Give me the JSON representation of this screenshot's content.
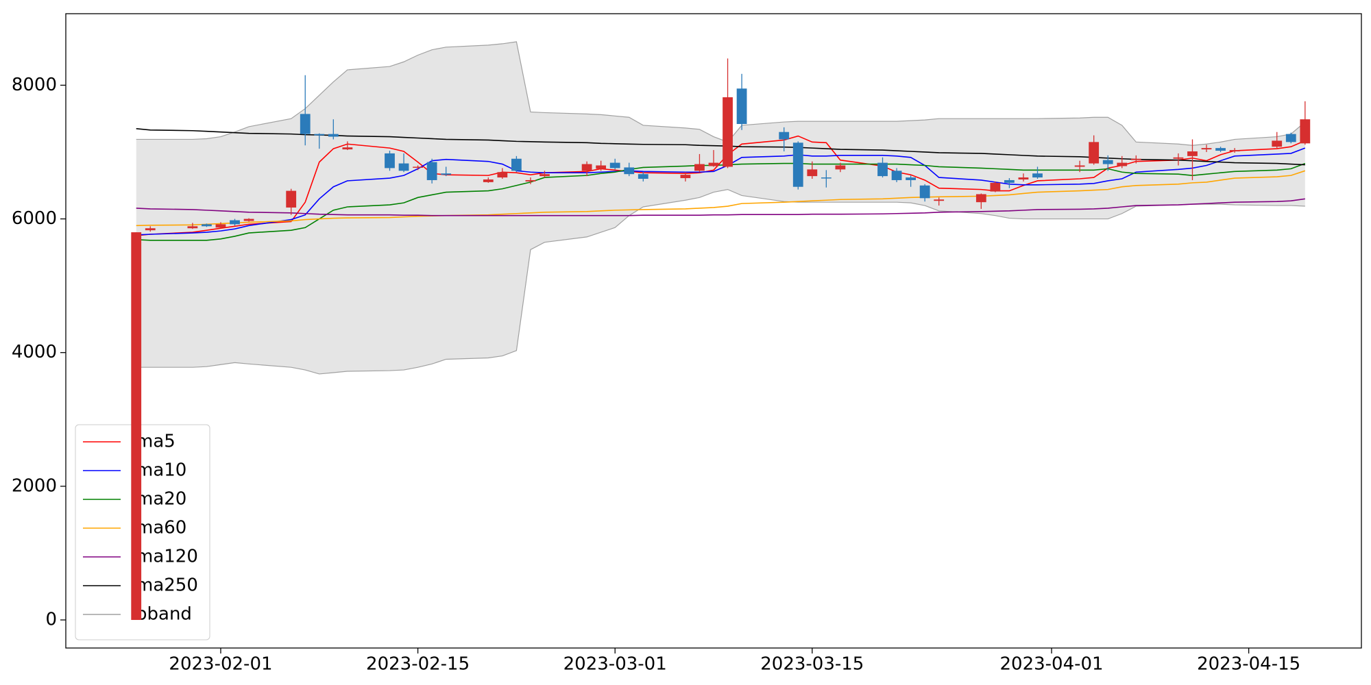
{
  "chart_data": {
    "type": "candlestick",
    "x": [
      "2023-01-26",
      "2023-01-27",
      "2023-01-30",
      "2023-01-31",
      "2023-02-01",
      "2023-02-02",
      "2023-02-03",
      "2023-02-06",
      "2023-02-07",
      "2023-02-08",
      "2023-02-09",
      "2023-02-10",
      "2023-02-13",
      "2023-02-14",
      "2023-02-15",
      "2023-02-16",
      "2023-02-17",
      "2023-02-20",
      "2023-02-21",
      "2023-02-22",
      "2023-02-23",
      "2023-02-24",
      "2023-02-27",
      "2023-02-28",
      "2023-03-01",
      "2023-03-02",
      "2023-03-03",
      "2023-03-06",
      "2023-03-07",
      "2023-03-08",
      "2023-03-09",
      "2023-03-10",
      "2023-03-13",
      "2023-03-14",
      "2023-03-15",
      "2023-03-16",
      "2023-03-17",
      "2023-03-20",
      "2023-03-21",
      "2023-03-22",
      "2023-03-23",
      "2023-03-24",
      "2023-03-27",
      "2023-03-28",
      "2023-03-29",
      "2023-03-30",
      "2023-03-31",
      "2023-04-03",
      "2023-04-04",
      "2023-04-05",
      "2023-04-06",
      "2023-04-07",
      "2023-04-10",
      "2023-04-11",
      "2023-04-12",
      "2023-04-13",
      "2023-04-14",
      "2023-04-17",
      "2023-04-18",
      "2023-04-19"
    ],
    "open": [
      0,
      5830,
      5860,
      5920,
      5870,
      5980,
      5970,
      6170,
      7570,
      7270,
      7270,
      7040,
      6980,
      6830,
      6770,
      6850,
      6680,
      6550,
      6620,
      6900,
      6560,
      6640,
      6720,
      6750,
      6840,
      6770,
      6670,
      6610,
      6720,
      6790,
      6780,
      7950,
      7300,
      7140,
      6640,
      6620,
      6740,
      6840,
      6720,
      6620,
      6500,
      6270,
      6250,
      6410,
      6580,
      6590,
      6680,
      6780,
      6830,
      6880,
      6790,
      6880,
      6900,
      6940,
      7040,
      7060,
      7010,
      7080,
      7270,
      7130
    ],
    "high": [
      5800,
      5890,
      5940,
      5930,
      5950,
      6000,
      6010,
      6450,
      8150,
      7280,
      7490,
      7160,
      7020,
      6980,
      6800,
      6900,
      6780,
      6620,
      6760,
      6940,
      6620,
      6720,
      6860,
      6870,
      6900,
      6840,
      6700,
      6700,
      6970,
      7030,
      8400,
      8170,
      7370,
      7160,
      6860,
      6730,
      6840,
      6920,
      6760,
      6650,
      6520,
      6320,
      6380,
      6560,
      6610,
      6680,
      6780,
      6870,
      7250,
      6950,
      6940,
      6950,
      6980,
      7190,
      7110,
      7080,
      7060,
      7300,
      7290,
      7760
    ],
    "low": [
      0,
      5810,
      5850,
      5880,
      5860,
      5900,
      5960,
      6060,
      7100,
      7050,
      7190,
      7030,
      6720,
      6700,
      6730,
      6530,
      6640,
      6540,
      6600,
      6700,
      6520,
      6620,
      6640,
      6720,
      6740,
      6640,
      6560,
      6560,
      6700,
      6780,
      6760,
      7330,
      7010,
      6440,
      6600,
      6470,
      6700,
      6620,
      6550,
      6480,
      6260,
      6200,
      6150,
      6400,
      6460,
      6560,
      6600,
      6700,
      6810,
      6720,
      6760,
      6830,
      6800,
      6580,
      7000,
      7000,
      6990,
      7060,
      7130,
      7110
    ],
    "close": [
      5800,
      5860,
      5890,
      5890,
      5920,
      5920,
      6000,
      6420,
      7270,
      7250,
      7230,
      7070,
      6760,
      6720,
      6780,
      6580,
      6660,
      6590,
      6700,
      6720,
      6580,
      6670,
      6820,
      6800,
      6760,
      6670,
      6600,
      6660,
      6820,
      6840,
      7820,
      7420,
      7190,
      6480,
      6740,
      6610,
      6800,
      6640,
      6580,
      6580,
      6310,
      6290,
      6370,
      6540,
      6540,
      6620,
      6620,
      6800,
      7150,
      6820,
      6840,
      6900,
      6920,
      7010,
      7060,
      7020,
      7030,
      7170,
      7150,
      7490
    ],
    "up_color": "#d62f2f",
    "down_color": "#2b7bba",
    "series": [
      {
        "name": "ma5",
        "color": "#ff0000",
        "values": [
          5750,
          5770,
          5800,
          5830,
          5860,
          5890,
          5920,
          5960,
          6250,
          6850,
          7050,
          7120,
          7060,
          7010,
          6850,
          6680,
          6660,
          6650,
          6700,
          6690,
          6660,
          6690,
          6710,
          6750,
          6730,
          6710,
          6690,
          6680,
          6690,
          6730,
          6960,
          7120,
          7180,
          7240,
          7150,
          7140,
          6880,
          6790,
          6700,
          6660,
          6580,
          6460,
          6440,
          6420,
          6420,
          6500,
          6570,
          6600,
          6620,
          6760,
          6800,
          6860,
          6880,
          6910,
          6870,
          6960,
          7020,
          7050,
          7080,
          7170
        ]
      },
      {
        "name": "ma10",
        "color": "#0000ff",
        "values": [
          5760,
          5770,
          5790,
          5800,
          5820,
          5850,
          5900,
          5990,
          6060,
          6300,
          6480,
          6570,
          6610,
          6650,
          6750,
          6870,
          6890,
          6860,
          6820,
          6720,
          6700,
          6690,
          6690,
          6700,
          6710,
          6720,
          6710,
          6700,
          6700,
          6710,
          6800,
          6920,
          6940,
          6960,
          6940,
          6940,
          6950,
          6950,
          6940,
          6920,
          6800,
          6620,
          6580,
          6550,
          6520,
          6510,
          6510,
          6520,
          6530,
          6570,
          6600,
          6700,
          6740,
          6760,
          6800,
          6870,
          6940,
          6970,
          6980,
          7060
        ]
      },
      {
        "name": "ma20",
        "color": "#008000",
        "values": [
          5690,
          5680,
          5680,
          5680,
          5700,
          5740,
          5790,
          5830,
          5870,
          6000,
          6130,
          6180,
          6210,
          6240,
          6320,
          6360,
          6400,
          6420,
          6450,
          6500,
          6550,
          6620,
          6650,
          6680,
          6700,
          6740,
          6770,
          6790,
          6800,
          6800,
          6810,
          6820,
          6830,
          6830,
          6820,
          6820,
          6820,
          6820,
          6820,
          6810,
          6800,
          6780,
          6760,
          6750,
          6740,
          6730,
          6730,
          6730,
          6730,
          6750,
          6700,
          6680,
          6670,
          6650,
          6670,
          6690,
          6710,
          6730,
          6750,
          6830
        ]
      },
      {
        "name": "ma60",
        "color": "#ffa500",
        "values": [
          5900,
          5905,
          5910,
          5920,
          5930,
          5940,
          5950,
          5970,
          5990,
          6000,
          6010,
          6015,
          6020,
          6030,
          6040,
          6045,
          6050,
          6060,
          6070,
          6080,
          6090,
          6100,
          6110,
          6120,
          6130,
          6135,
          6140,
          6150,
          6160,
          6170,
          6190,
          6230,
          6250,
          6260,
          6270,
          6280,
          6290,
          6300,
          6310,
          6320,
          6325,
          6330,
          6340,
          6350,
          6360,
          6380,
          6400,
          6420,
          6430,
          6440,
          6480,
          6500,
          6520,
          6540,
          6550,
          6580,
          6610,
          6630,
          6650,
          6720
        ]
      },
      {
        "name": "ma120",
        "color": "#800080",
        "values": [
          6160,
          6150,
          6140,
          6130,
          6120,
          6110,
          6100,
          6090,
          6080,
          6070,
          6065,
          6060,
          6060,
          6055,
          6055,
          6050,
          6050,
          6050,
          6050,
          6050,
          6050,
          6050,
          6050,
          6050,
          6050,
          6050,
          6055,
          6055,
          6055,
          6060,
          6060,
          6065,
          6065,
          6065,
          6070,
          6070,
          6070,
          6075,
          6080,
          6085,
          6090,
          6100,
          6110,
          6115,
          6120,
          6130,
          6140,
          6145,
          6150,
          6160,
          6180,
          6200,
          6210,
          6220,
          6230,
          6240,
          6250,
          6260,
          6270,
          6300
        ]
      },
      {
        "name": "ma250",
        "color": "#000000",
        "values": [
          7350,
          7330,
          7320,
          7310,
          7300,
          7290,
          7280,
          7270,
          7260,
          7255,
          7250,
          7240,
          7230,
          7220,
          7210,
          7200,
          7190,
          7180,
          7170,
          7160,
          7155,
          7150,
          7140,
          7130,
          7125,
          7120,
          7115,
          7110,
          7100,
          7095,
          7090,
          7080,
          7075,
          7070,
          7060,
          7050,
          7040,
          7030,
          7020,
          7010,
          7000,
          6990,
          6980,
          6970,
          6960,
          6950,
          6940,
          6930,
          6920,
          6910,
          6900,
          6890,
          6880,
          6870,
          6860,
          6850,
          6840,
          6830,
          6820,
          6810
        ]
      }
    ],
    "band": {
      "name": "bband",
      "color": "#a0a0a0",
      "fill": "#e5e5e5",
      "upper": [
        7190,
        7190,
        7190,
        7200,
        7230,
        7300,
        7380,
        7500,
        7650,
        7850,
        8050,
        8230,
        8280,
        8350,
        8450,
        8530,
        8570,
        8600,
        8620,
        8650,
        7600,
        7590,
        7570,
        7560,
        7540,
        7520,
        7400,
        7360,
        7340,
        7230,
        7150,
        7400,
        7450,
        7460,
        7460,
        7460,
        7460,
        7460,
        7460,
        7470,
        7480,
        7500,
        7500,
        7500,
        7500,
        7500,
        7500,
        7510,
        7520,
        7520,
        7400,
        7150,
        7120,
        7100,
        7120,
        7150,
        7190,
        7230,
        7270,
        7450
      ],
      "lower": [
        3780,
        3780,
        3780,
        3790,
        3820,
        3850,
        3830,
        3780,
        3740,
        3680,
        3700,
        3720,
        3730,
        3740,
        3780,
        3830,
        3900,
        3920,
        3950,
        4030,
        5540,
        5650,
        5730,
        5800,
        5870,
        6050,
        6180,
        6280,
        6320,
        6400,
        6440,
        6350,
        6260,
        6250,
        6250,
        6250,
        6250,
        6250,
        6250,
        6240,
        6200,
        6120,
        6080,
        6050,
        6010,
        6000,
        6000,
        6000,
        6000,
        6000,
        6080,
        6190,
        6210,
        6220,
        6220,
        6220,
        6210,
        6200,
        6200,
        6190
      ]
    },
    "xlim": [
      "2023-01-21",
      "2023-04-23"
    ],
    "xticks": [
      "2023-02-01",
      "2023-02-15",
      "2023-03-01",
      "2023-03-15",
      "2023-04-01",
      "2023-04-15"
    ],
    "ylim": [
      -420,
      9070
    ],
    "yticks": [
      0,
      2000,
      4000,
      6000,
      8000
    ],
    "legend": "lower left"
  }
}
